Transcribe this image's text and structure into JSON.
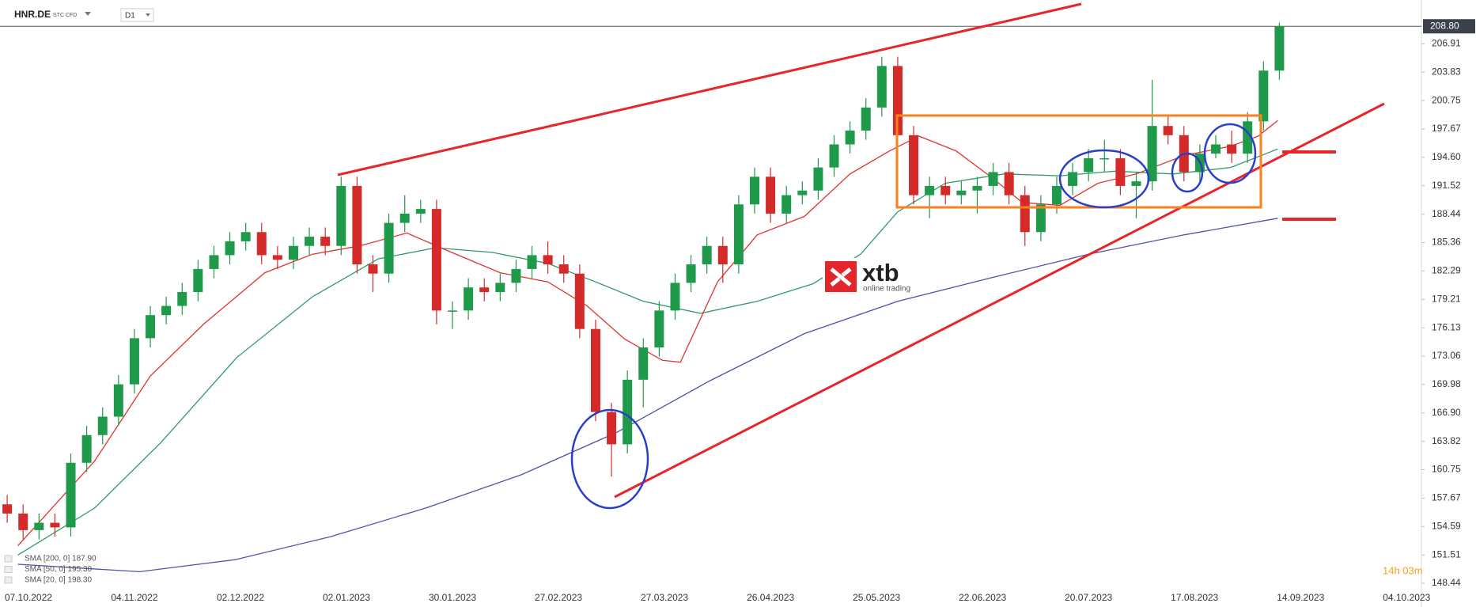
{
  "header": {
    "symbol": "HNR.DE",
    "instrument_type": "STC CFD",
    "timeframe": "D1"
  },
  "logo": {
    "name": "xtb",
    "tagline": "online trading"
  },
  "countdown": "14h 03m",
  "chart_data": {
    "type": "candlestick",
    "candles": {
      "up_color": "#1f9a4a",
      "down_color": "#d42a2a",
      "x": [
        -4,
        -1,
        2,
        5,
        8,
        11,
        14,
        17,
        20,
        23,
        26,
        29,
        32,
        35,
        38,
        41,
        44,
        47,
        50,
        53,
        56,
        59,
        62,
        65,
        68,
        71,
        74,
        77,
        80,
        83,
        86,
        89,
        92,
        95,
        98,
        101,
        104,
        107,
        110,
        113,
        116,
        119,
        122,
        125,
        128,
        131,
        134,
        137,
        140,
        143,
        146,
        149,
        152,
        155,
        158,
        161,
        164,
        167,
        170,
        173,
        176,
        179,
        182,
        185,
        188,
        191,
        194,
        197,
        200,
        203,
        206,
        209,
        212,
        215,
        218,
        221,
        224,
        227,
        230,
        233,
        236
      ],
      "open": [
        157.0,
        156.0,
        154.2,
        155.0,
        154.5,
        161.5,
        164.5,
        166.5,
        170.0,
        175.0,
        177.5,
        178.5,
        180.0,
        182.5,
        184.0,
        185.5,
        186.5,
        184.0,
        183.5,
        185.0,
        186.0,
        185.0,
        191.5,
        183.0,
        182.0,
        187.5,
        188.5,
        189.0,
        178.0,
        178.0,
        180.5,
        180.0,
        181.0,
        182.5,
        184.0,
        183.0,
        182.0,
        176.0,
        167.0,
        163.5,
        170.5,
        174.0,
        178.0,
        181.0,
        183.0,
        185.0,
        183.0,
        189.5,
        192.5,
        188.5,
        190.5,
        191.0,
        193.5,
        196.0,
        197.5,
        200.0,
        204.5,
        197.0,
        190.5,
        191.5,
        190.5,
        191.0,
        191.5,
        193.0,
        190.5,
        186.5,
        189.5,
        191.5,
        193.0,
        194.5,
        194.5,
        191.5,
        192.0,
        198.0,
        197.0,
        193.0,
        195.0,
        196.0,
        195.0,
        198.5,
        204.0
      ],
      "high": [
        158,
        157,
        156,
        156,
        162.5,
        165.5,
        167.5,
        171,
        176,
        178.5,
        179.5,
        181,
        183.5,
        185,
        186.5,
        187.5,
        187.5,
        185,
        186,
        187,
        187,
        192.5,
        192.5,
        184,
        188.5,
        190.5,
        190,
        190,
        179,
        181.5,
        181.5,
        182,
        183.5,
        185,
        185.5,
        184,
        183,
        177,
        168,
        171.5,
        175,
        179,
        182,
        184,
        186,
        186,
        190.5,
        193.5,
        193.5,
        191.5,
        192,
        194.5,
        197,
        198.5,
        201,
        205.5,
        205.5,
        198,
        192.5,
        192.5,
        192,
        192.5,
        194,
        194,
        191.5,
        190.5,
        192.5,
        194,
        195.5,
        196.5,
        195.5,
        193,
        203,
        199,
        198,
        196,
        197,
        197.5,
        199.5,
        205,
        209.2
      ],
      "low": [
        155,
        153.2,
        153.2,
        153.5,
        153.5,
        160.5,
        163.5,
        165.5,
        169,
        174,
        176.5,
        177.5,
        179,
        181.5,
        183,
        184.5,
        183,
        182.5,
        182.5,
        184,
        184,
        184,
        182,
        180,
        181,
        186.5,
        187.5,
        176.5,
        176,
        177,
        179,
        179,
        180,
        181.5,
        182,
        181,
        175,
        166,
        160,
        162.5,
        167.5,
        173,
        177,
        180,
        182,
        181,
        182,
        188.5,
        187.5,
        187.5,
        189.5,
        190,
        192.5,
        195,
        196.5,
        199,
        196,
        189.5,
        188,
        189.5,
        189.5,
        188.5,
        190.5,
        189.5,
        185,
        185.5,
        188.5,
        190.5,
        192,
        193,
        190.5,
        188,
        191,
        196,
        192,
        192,
        194.5,
        194,
        194,
        197.5,
        203
      ],
      "close": [
        156.0,
        154.2,
        155.0,
        154.5,
        161.5,
        164.5,
        166.5,
        170.0,
        175.0,
        177.5,
        178.5,
        180.0,
        182.5,
        184.0,
        185.5,
        186.5,
        184.0,
        183.5,
        185.0,
        186.0,
        185.0,
        191.5,
        183.0,
        182.0,
        187.5,
        188.5,
        189.0,
        178.0,
        178.0,
        180.5,
        180.0,
        181.0,
        182.5,
        184.0,
        183.0,
        182.0,
        176.0,
        167.0,
        163.5,
        170.5,
        174.0,
        178.0,
        181.0,
        183.0,
        185.0,
        183.0,
        189.5,
        192.5,
        188.5,
        190.5,
        191.0,
        193.5,
        196.0,
        197.5,
        200.0,
        204.5,
        197.0,
        190.5,
        191.5,
        190.5,
        191.0,
        191.5,
        193.0,
        190.5,
        186.5,
        189.5,
        191.5,
        193.0,
        194.5,
        194.5,
        191.5,
        192.0,
        198.0,
        197.0,
        193.0,
        195.0,
        196.0,
        195.0,
        198.5,
        204.0,
        208.8
      ]
    },
    "series": [
      {
        "name": "SMA [200, 0] 187.90",
        "color": "#4b54a6",
        "x": [
          -2,
          21,
          39,
          57,
          75,
          93,
          111,
          128.6,
          146.4,
          164,
          182,
          200,
          218,
          235.7
        ],
        "values": [
          150.5,
          149.7,
          151,
          153.5,
          156.6,
          160.2,
          164.8,
          170.4,
          175.5,
          179,
          181.6,
          184.1,
          186.2,
          188
        ]
      },
      {
        "name": "SMA [50, 0] 195.30",
        "color": "#2e9a6a",
        "x": [
          -2,
          12.5,
          25,
          39.3,
          53.6,
          66,
          76.8,
          87.5,
          98,
          107,
          116,
          126.8,
          137.5,
          148,
          157,
          164,
          173,
          184,
          194.6,
          205,
          216,
          226.8,
          235.7
        ],
        "values": [
          151.5,
          156.6,
          163.7,
          172.9,
          179.5,
          183.6,
          184.8,
          184.3,
          183.1,
          181.1,
          179,
          177.7,
          179,
          180.9,
          184.1,
          188.7,
          191.8,
          192.8,
          192.6,
          193.1,
          192.8,
          193.5,
          195.5
        ]
      },
      {
        "name": "SMA [20, 0] 198.30",
        "color": "#e0332f",
        "x": [
          -2,
          12.5,
          23,
          33,
          44.6,
          53.6,
          62.5,
          71.4,
          78.6,
          89,
          98,
          105.4,
          112.5,
          119.6,
          123,
          130,
          137.5,
          146.4,
          155,
          162.5,
          168,
          175,
          182,
          187.5,
          194.6,
          201.8,
          209,
          218,
          226.8,
          232,
          235.7
        ],
        "values": [
          152.5,
          161.7,
          170.9,
          176.5,
          182.1,
          184.1,
          185,
          186.4,
          184.6,
          182.1,
          181.1,
          178.5,
          174.9,
          172.6,
          172.4,
          181.1,
          186.2,
          188.2,
          192.8,
          195.3,
          196.9,
          195.3,
          192.3,
          189.7,
          189.4,
          191.8,
          192.8,
          194.8,
          195.8,
          196.9,
          198.6
        ]
      }
    ],
    "last_price": {
      "value": 208.8,
      "label": "208.80"
    },
    "xlim": [
      -5.36,
      262.5
    ],
    "xticks": [
      {
        "value": 0,
        "label": "07.10.2022"
      },
      {
        "value": 20,
        "label": "04.11.2022"
      },
      {
        "value": 40,
        "label": "02.12.2022"
      },
      {
        "value": 60,
        "label": "02.01.2023"
      },
      {
        "value": 80,
        "label": "30.01.2023"
      },
      {
        "value": 100,
        "label": "27.02.2023"
      },
      {
        "value": 120,
        "label": "27.03.2023"
      },
      {
        "value": 140,
        "label": "26.04.2023"
      },
      {
        "value": 160,
        "label": "25.05.2023"
      },
      {
        "value": 180,
        "label": "22.06.2023"
      },
      {
        "value": 200,
        "label": "20.07.2023"
      },
      {
        "value": 220,
        "label": "17.08.2023"
      },
      {
        "value": 240,
        "label": "14.09.2023"
      },
      {
        "value": 260,
        "label": "04.10.2023"
      }
    ],
    "ylim": [
      147.93,
      211.65
    ],
    "yticks": [
      148.44,
      151.51,
      154.59,
      157.67,
      160.75,
      163.82,
      {
        "value": 166.9,
        "label": "166.90"
      },
      169.98,
      173.06,
      176.13,
      179.21,
      182.29,
      185.36,
      188.44,
      191.52,
      {
        "value": 194.6,
        "label": "194.60"
      },
      197.67,
      200.75,
      203.83,
      206.91
    ]
  }
}
